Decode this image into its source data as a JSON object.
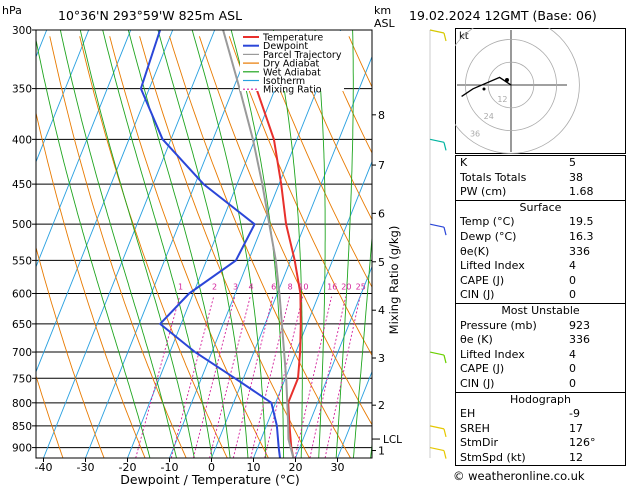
{
  "header": {
    "location": "10°36'N 293°59'W 825m ASL",
    "datetime": "19.02.2024 12GMT (Base: 06)",
    "pressure_unit": "hPa",
    "altitude_unit": "km\nASL",
    "altitude_unit_km": "km",
    "altitude_unit_asl": "ASL"
  },
  "chart_data": {
    "type": "line",
    "title": "",
    "xlabel": "Dewpoint / Temperature (°C)",
    "ylabel": "hPa",
    "right_label": "Mixing Ratio (g/kg)",
    "x_ticks": [
      -40,
      -30,
      -20,
      -10,
      0,
      10,
      20,
      30
    ],
    "pressure_ticks": [
      300,
      350,
      400,
      450,
      500,
      550,
      600,
      650,
      700,
      750,
      800,
      850,
      900
    ],
    "km_ticks": [
      {
        "km": "1",
        "p": 907
      },
      {
        "km": "2",
        "p": 805
      },
      {
        "km": "3",
        "p": 711
      },
      {
        "km": "4",
        "p": 627
      },
      {
        "km": "5",
        "p": 552
      },
      {
        "km": "6",
        "p": 486
      },
      {
        "km": "7",
        "p": 428
      },
      {
        "km": "8",
        "p": 375
      }
    ],
    "lcl": {
      "label": "LCL",
      "p": 880
    },
    "mixing_ratio_labels": [
      "1",
      "2",
      "3",
      "4",
      "6",
      "8",
      "10",
      "16",
      "20",
      "25"
    ],
    "legend": [
      "Temperature",
      "Dewpoint",
      "Parcel Trajectory",
      "Dry Adiabat",
      "Wet Adiabat",
      "Isotherm",
      "Mixing Ratio"
    ],
    "colors": {
      "temperature": "#e8302c",
      "dewpoint": "#2b46d8",
      "parcel": "#9a9a9a",
      "dry_adiabat": "#e87a00",
      "wet_adiabat": "#1fa51f",
      "isotherm": "#28a0e0",
      "mixing_ratio": "#d3209b"
    },
    "series": [
      {
        "name": "Temperature",
        "points": [
          [
            925,
            19.5
          ],
          [
            900,
            18.0
          ],
          [
            850,
            15.5
          ],
          [
            800,
            13.0
          ],
          [
            750,
            13.0
          ],
          [
            700,
            11.0
          ],
          [
            650,
            8.5
          ],
          [
            600,
            5.5
          ],
          [
            550,
            1.0
          ],
          [
            500,
            -4.5
          ],
          [
            450,
            -9.5
          ],
          [
            400,
            -15.5
          ],
          [
            350,
            -24.5
          ]
        ]
      },
      {
        "name": "Dewpoint",
        "points": [
          [
            925,
            16.3
          ],
          [
            900,
            15.0
          ],
          [
            850,
            12.5
          ],
          [
            800,
            9.0
          ],
          [
            750,
            -2.0
          ],
          [
            700,
            -14.0
          ],
          [
            650,
            -25.0
          ],
          [
            600,
            -21.0
          ],
          [
            550,
            -13.0
          ],
          [
            500,
            -12.0
          ],
          [
            450,
            -28.0
          ],
          [
            400,
            -42.0
          ],
          [
            350,
            -52.0
          ],
          [
            300,
            -53.0
          ]
        ]
      },
      {
        "name": "Parcel Trajectory",
        "points": [
          [
            925,
            19.5
          ],
          [
            880,
            16.5
          ],
          [
            850,
            15.2
          ],
          [
            800,
            12.8
          ],
          [
            750,
            10.2
          ],
          [
            700,
            7.2
          ],
          [
            650,
            4.0
          ],
          [
            600,
            0.5
          ],
          [
            550,
            -3.5
          ],
          [
            500,
            -8.5
          ],
          [
            450,
            -14.0
          ],
          [
            400,
            -20.5
          ],
          [
            350,
            -28.5
          ],
          [
            300,
            -38.0
          ]
        ]
      }
    ]
  },
  "hodograph": {
    "label": "kt",
    "ring_labels": [
      "12",
      "24",
      "36"
    ],
    "points": [
      [
        0,
        0
      ],
      [
        -3,
        -2
      ],
      [
        -10,
        1
      ],
      [
        -13,
        3
      ]
    ]
  },
  "indices": {
    "K": "5",
    "Totals Totals": "38",
    "PW (cm)": "1.68"
  },
  "surface": {
    "title": "Surface",
    "temp_label": "Temp (°C)",
    "temp": "19.5",
    "dewp_label": "Dewp (°C)",
    "dewp": "16.3",
    "theta_e_label": "θe(K)",
    "theta_e": "336",
    "li_label": "Lifted Index",
    "li": "4",
    "cape_label": "CAPE (J)",
    "cape": "0",
    "cin_label": "CIN (J)",
    "cin": "0"
  },
  "most_unstable": {
    "title": "Most Unstable",
    "pressure_label": "Pressure (mb)",
    "pressure": "923",
    "theta_e_label": "θe (K)",
    "theta_e": "336",
    "li_label": "Lifted Index",
    "li": "4",
    "cape_label": "CAPE (J)",
    "cape": "0",
    "cin_label": "CIN (J)",
    "cin": "0"
  },
  "hodo_table": {
    "title": "Hodograph",
    "eh_label": "EH",
    "eh": "-9",
    "sreh_label": "SREH",
    "sreh": "17",
    "stmdir_label": "StmDir",
    "stmdir": "126°",
    "stmspd_label": "StmSpd (kt)",
    "stmspd": "12"
  },
  "footer": "© weatheronline.co.uk"
}
